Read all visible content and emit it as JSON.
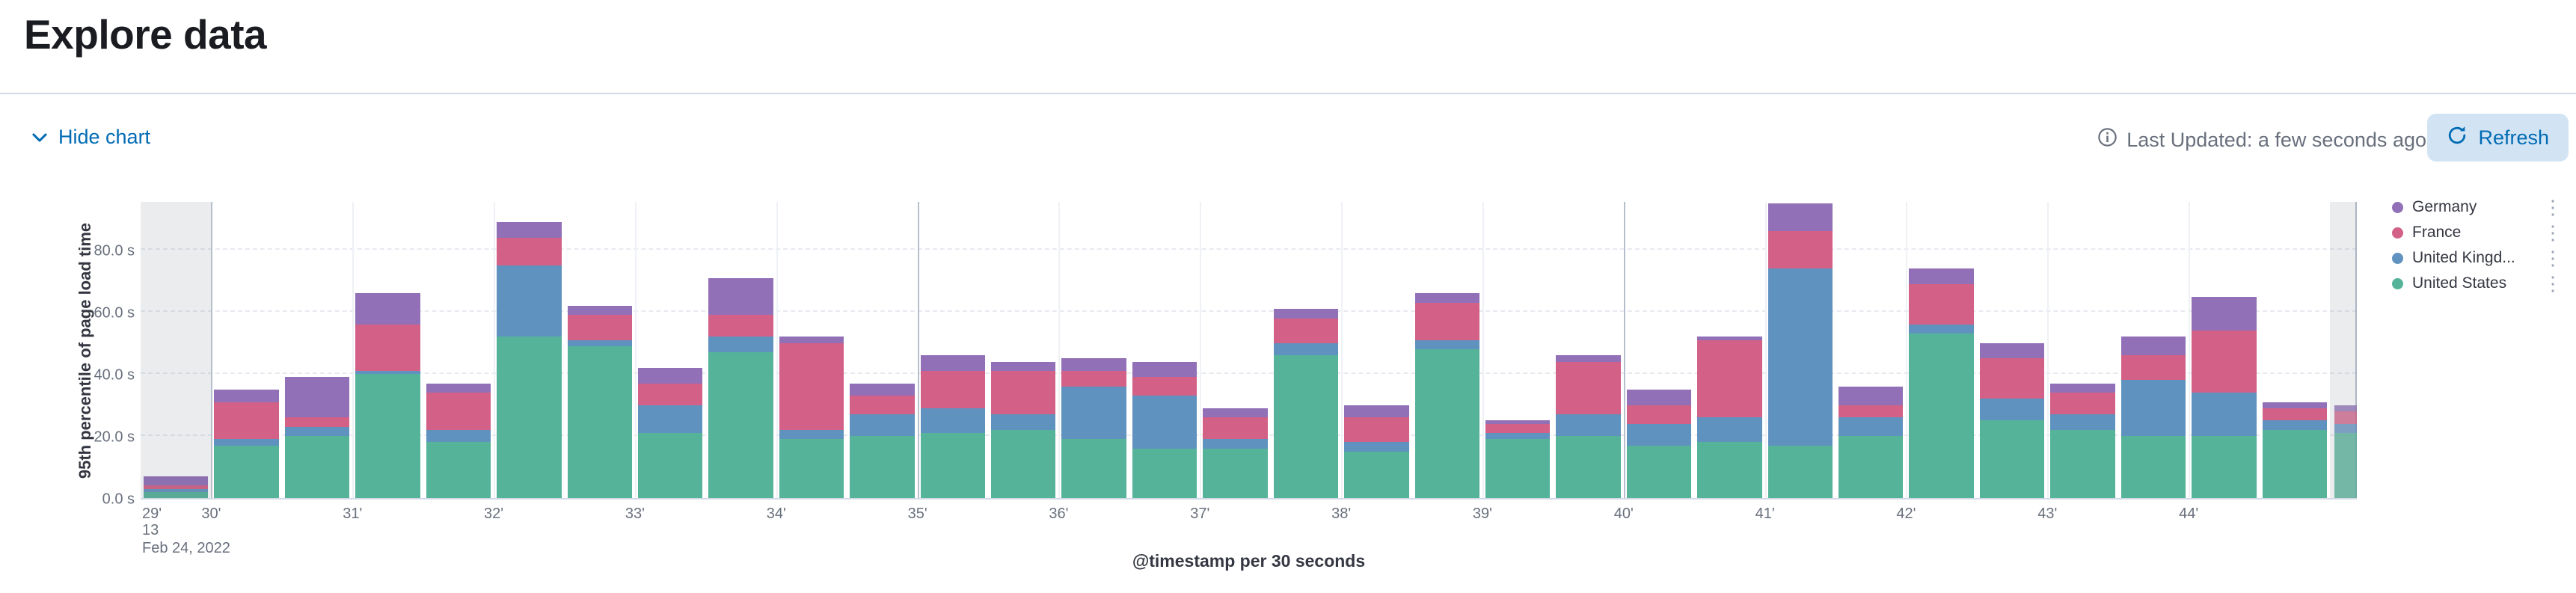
{
  "header": {
    "title": "Explore data"
  },
  "toolbar": {
    "hide_chart_label": "Hide chart",
    "last_updated": "Last Updated: a few seconds ago",
    "refresh_label": "Refresh"
  },
  "icons": {
    "chevron_down": "chevron-down",
    "info": "info-circle",
    "refresh": "refresh-arrow",
    "options": "⋮"
  },
  "legend": {
    "items": [
      {
        "label": "Germany",
        "color": "#9170b8"
      },
      {
        "label": "France",
        "color": "#d36086"
      },
      {
        "label": "United Kingd...",
        "color": "#6092c0"
      },
      {
        "label": "United States",
        "color": "#54b399"
      }
    ]
  },
  "chart_data": {
    "type": "bar",
    "stacked": true,
    "title": "",
    "xlabel": "@timestamp per 30 seconds",
    "ylabel": "95th percentile of page load time",
    "ylim": [
      0,
      96
    ],
    "ytick_values": [
      0,
      20,
      40,
      60,
      80
    ],
    "ytick_labels": [
      "0.0 s",
      "20.0 s",
      "40.0 s",
      "60.0 s",
      "80.0 s"
    ],
    "x_start": {
      "line1": "29'",
      "line2": "13",
      "line3": "Feb 24, 2022"
    },
    "x_minute_labels": [
      "30'",
      "31'",
      "32'",
      "33'",
      "34'",
      "35'",
      "36'",
      "37'",
      "38'",
      "39'",
      "40'",
      "41'",
      "42'",
      "43'",
      "44'"
    ],
    "x_major_minutes": [
      "30'",
      "35'",
      "40'"
    ],
    "grid": true,
    "legend_position": "right",
    "partial_buckets": [
      "first",
      "last"
    ],
    "series": [
      {
        "name": "United States",
        "color": "#54b399",
        "values": [
          2,
          17,
          20,
          40,
          18,
          52,
          49,
          21,
          47,
          19,
          20,
          21,
          22,
          19,
          16,
          16,
          46,
          15,
          48,
          19,
          20,
          17,
          18,
          17,
          20,
          53,
          25,
          22,
          20,
          20,
          22,
          21
        ]
      },
      {
        "name": "United Kingdom",
        "color": "#6092c0",
        "values": [
          1,
          2,
          3,
          1,
          4,
          23,
          2,
          9,
          5,
          3,
          7,
          8,
          5,
          17,
          17,
          3,
          4,
          3,
          3,
          2,
          7,
          7,
          8,
          57,
          6,
          3,
          7,
          5,
          18,
          14,
          3,
          3
        ]
      },
      {
        "name": "France",
        "color": "#d36086",
        "values": [
          1,
          12,
          3,
          15,
          12,
          9,
          8,
          7,
          7,
          28,
          6,
          12,
          14,
          5,
          6,
          7,
          8,
          8,
          12,
          3,
          17,
          6,
          25,
          12,
          4,
          13,
          13,
          7,
          8,
          20,
          4,
          4
        ]
      },
      {
        "name": "Germany",
        "color": "#9170b8",
        "values": [
          3,
          4,
          13,
          10,
          3,
          5,
          3,
          5,
          12,
          2,
          4,
          5,
          3,
          4,
          5,
          3,
          3,
          4,
          3,
          1,
          2,
          5,
          1,
          9,
          6,
          5,
          5,
          3,
          6,
          11,
          2,
          2
        ]
      }
    ]
  }
}
